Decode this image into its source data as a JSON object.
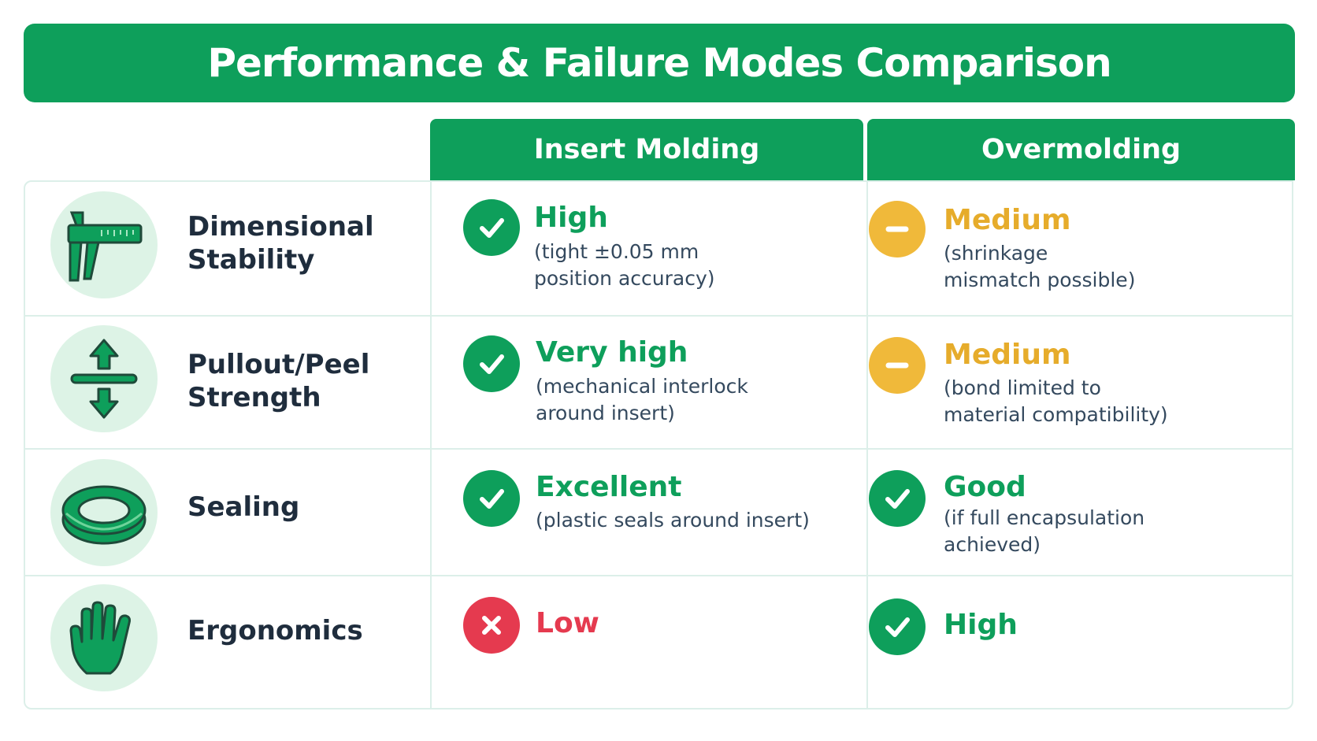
{
  "title": "Performance & Failure Modes Comparison",
  "columns": {
    "insert": "Insert Molding",
    "over": "Overmolding"
  },
  "colors": {
    "good": "#0e9f5b",
    "medium": "#f0b93a",
    "bad": "#e53a4f",
    "header": "#0e9f5b"
  },
  "rows": [
    {
      "criterion": "Dimensional Stability",
      "icon": "caliper-icon",
      "insert": {
        "status": "good",
        "rating": "High",
        "note": "(tight ±0.05 mm position accuracy)"
      },
      "over": {
        "status": "medium",
        "rating": "Medium",
        "note": "(shrinkage mismatch possible)"
      }
    },
    {
      "criterion": "Pullout/Peel Strength",
      "icon": "pull-arrows-icon",
      "insert": {
        "status": "good",
        "rating": "Very high",
        "note": "(mechanical interlock around insert)"
      },
      "over": {
        "status": "medium",
        "rating": "Medium",
        "note": "(bond limited to material compatibility)"
      }
    },
    {
      "criterion": "Sealing",
      "icon": "seal-ring-icon",
      "insert": {
        "status": "good",
        "rating": "Excellent",
        "note": "(plastic seals around insert)"
      },
      "over": {
        "status": "good",
        "rating": "Good",
        "note": "(if full encapsulation achieved)"
      }
    },
    {
      "criterion": "Ergonomics",
      "icon": "hand-icon",
      "insert": {
        "status": "bad",
        "rating": "Low",
        "note": ""
      },
      "over": {
        "status": "good",
        "rating": "High",
        "note": ""
      }
    }
  ]
}
